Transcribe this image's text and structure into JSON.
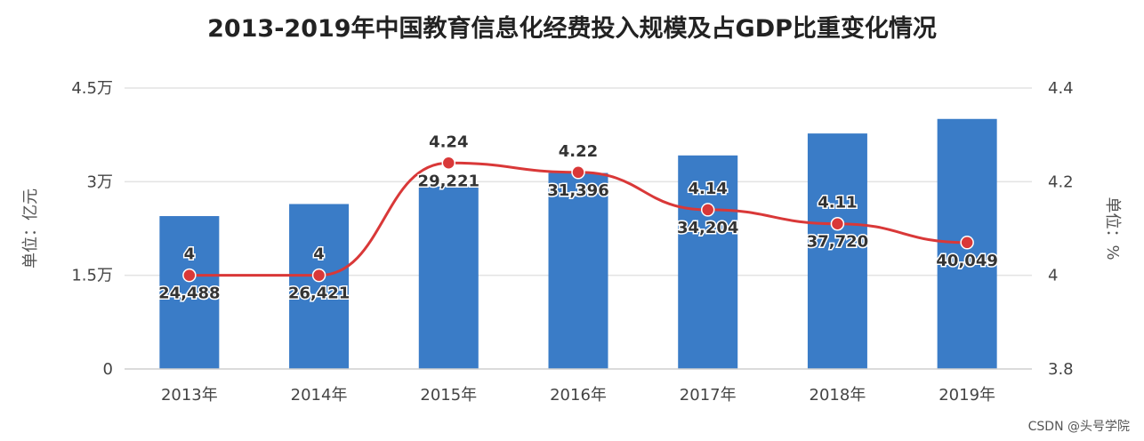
{
  "chart_data": {
    "type": "bar",
    "title": "2013-2019年中国教育信息化经费投入规模及占GDP比重变化情况",
    "ylabel": "单位：亿元",
    "y2label": "单位：%",
    "categories": [
      "2013年",
      "2014年",
      "2015年",
      "2016年",
      "2017年",
      "2018年",
      "2019年"
    ],
    "series": [
      {
        "type": "bar",
        "axis": "left",
        "values": [
          24488,
          26421,
          29221,
          31396,
          34204,
          37720,
          40049
        ],
        "labels": [
          "24,488",
          "26,421",
          "29,221",
          "31,396",
          "34,204",
          "37,720",
          "40,049"
        ],
        "color": "#3a7cc7"
      },
      {
        "type": "line",
        "axis": "right",
        "values": [
          4,
          4,
          4.24,
          4.22,
          4.14,
          4.11,
          4.07
        ],
        "labels": [
          "4",
          "4",
          "4.24",
          "4.22",
          "4.14",
          "4.11",
          ""
        ],
        "color": "#d93838"
      }
    ],
    "ylim": [
      0,
      45000
    ],
    "y2lim": [
      3.8,
      4.4
    ],
    "yticks": [
      {
        "value": 0,
        "label": "0"
      },
      {
        "value": 15000,
        "label": "1.5万"
      },
      {
        "value": 30000,
        "label": "3万"
      },
      {
        "value": 45000,
        "label": "4.5万"
      }
    ],
    "y2ticks": [
      {
        "value": 3.8,
        "label": "3.8"
      },
      {
        "value": 4.0,
        "label": "4"
      },
      {
        "value": 4.2,
        "label": "4.2"
      },
      {
        "value": 4.4,
        "label": "4.4"
      }
    ],
    "grid": true
  },
  "credit": "CSDN @头号学院"
}
